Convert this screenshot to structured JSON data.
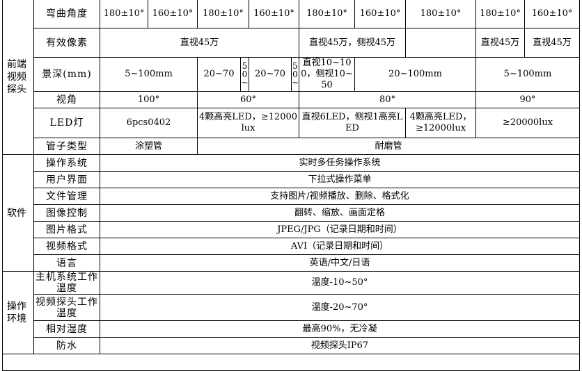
{
  "front": {
    "section": "前端视频探头",
    "bend": {
      "label": "弯曲角度",
      "values": [
        "180±10°",
        "160±10°",
        "180±10°",
        "160±10°",
        "180±10°",
        "160±10°",
        "180±10°",
        "180±10°",
        "160±10°"
      ]
    },
    "pixels": {
      "label": "有效像素",
      "values": [
        "直视45万",
        "直视45万，侧视45万",
        "",
        "直视45万",
        "直视45万"
      ]
    },
    "depth": {
      "label": "景深(mm)",
      "values": [
        "5~100mm",
        "20~70",
        "50~",
        "20~70",
        "50~",
        "直视10~100，侧视10~50",
        "20~100mm",
        "5~100mm"
      ]
    },
    "angle": {
      "label": "视角",
      "values": [
        "100°",
        "60°",
        "80°",
        "90°"
      ]
    },
    "led": {
      "label": "LED灯",
      "values": [
        "6pcs0402",
        "4颗高亮LED，≥12000lux",
        "直视6LED，侧视1高亮LED",
        "4颗高亮LED，≥12000lux",
        "≥20000lux"
      ]
    },
    "tube": {
      "label": "管子类型",
      "values": [
        "涂塑管",
        "耐磨管"
      ]
    }
  },
  "software": {
    "section": "软件",
    "rows": [
      {
        "label": "操作系统",
        "value": "实时多任务操作系统"
      },
      {
        "label": "用户界面",
        "value": "下拉式操作菜单"
      },
      {
        "label": "文件管理",
        "value": "支持图片/视频播放、删除、格式化"
      },
      {
        "label": "图像控制",
        "value": "翻转、缩放、画面定格"
      },
      {
        "label": "图片格式",
        "value": "JPEG/JPG（记录日期和时间）"
      },
      {
        "label": "视频格式",
        "value": "AVI（记录日期和时间）"
      },
      {
        "label": "语言",
        "value": "英语/中文/日语"
      }
    ]
  },
  "environment": {
    "section": "操作环境",
    "rows": [
      {
        "label": "主机系统工作温度",
        "value": "温度-10~50°"
      },
      {
        "label": "视频探头工作温度",
        "value": "温度-20~70°"
      },
      {
        "label": "相对湿度",
        "value": "最高90%，无冷凝"
      },
      {
        "label": "防水",
        "value": "视频探头IP67"
      }
    ]
  }
}
